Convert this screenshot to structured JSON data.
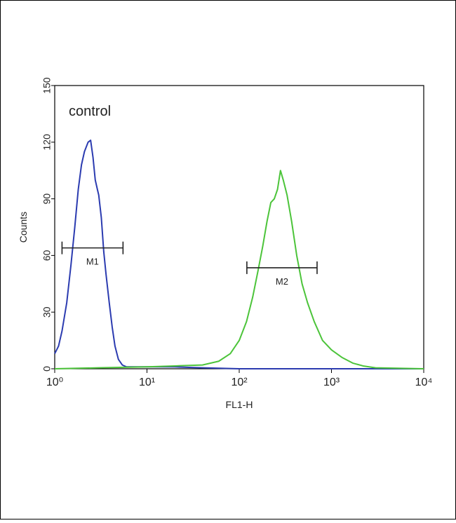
{
  "chart_data": {
    "type": "line",
    "annotation": "control",
    "xlabel": "FL1-H",
    "ylabel": "Counts",
    "xscale": "log",
    "xlim": [
      1,
      10000
    ],
    "ylim": [
      0,
      150
    ],
    "xticks": [
      {
        "value": 1,
        "label": "10⁰"
      },
      {
        "value": 10,
        "label": "10¹"
      },
      {
        "value": 100,
        "label": "10²"
      },
      {
        "value": 1000,
        "label": "10³"
      },
      {
        "value": 10000,
        "label": "10⁴"
      }
    ],
    "yticks": [
      0,
      30,
      60,
      90,
      120,
      150
    ],
    "series": [
      {
        "color": "#2b3bb0",
        "x": [
          1.0,
          1.1,
          1.2,
          1.35,
          1.5,
          1.65,
          1.8,
          1.95,
          2.1,
          2.3,
          2.45,
          2.6,
          2.75,
          2.9,
          3.0,
          3.2,
          3.4,
          3.6,
          3.9,
          4.2,
          4.5,
          4.9,
          5.4,
          6,
          8,
          12,
          20,
          40,
          100,
          1000,
          10000
        ],
        "values": [
          8,
          12,
          20,
          35,
          55,
          75,
          95,
          108,
          115,
          120,
          121,
          112,
          100,
          95,
          92,
          80,
          62,
          50,
          35,
          22,
          12,
          5,
          2,
          1,
          1,
          1,
          1,
          0.5,
          0,
          0,
          0
        ]
      },
      {
        "color": "#4cc43a",
        "x": [
          1,
          3,
          10,
          20,
          40,
          60,
          80,
          100,
          120,
          140,
          160,
          180,
          200,
          220,
          240,
          260,
          280,
          300,
          330,
          370,
          420,
          480,
          550,
          650,
          800,
          1000,
          1300,
          1700,
          2200,
          3000,
          10000
        ],
        "values": [
          0,
          0.5,
          1,
          1.5,
          2,
          4,
          8,
          15,
          25,
          38,
          52,
          65,
          78,
          88,
          90,
          95,
          105,
          100,
          92,
          78,
          60,
          45,
          35,
          25,
          15,
          10,
          6,
          3,
          1.5,
          0.5,
          0
        ]
      }
    ],
    "markers": [
      {
        "label": "M1",
        "x": [
          1.2,
          5.5
        ],
        "y": 64
      },
      {
        "label": "M2",
        "x": [
          121,
          698
        ],
        "y": 53.5
      }
    ]
  }
}
